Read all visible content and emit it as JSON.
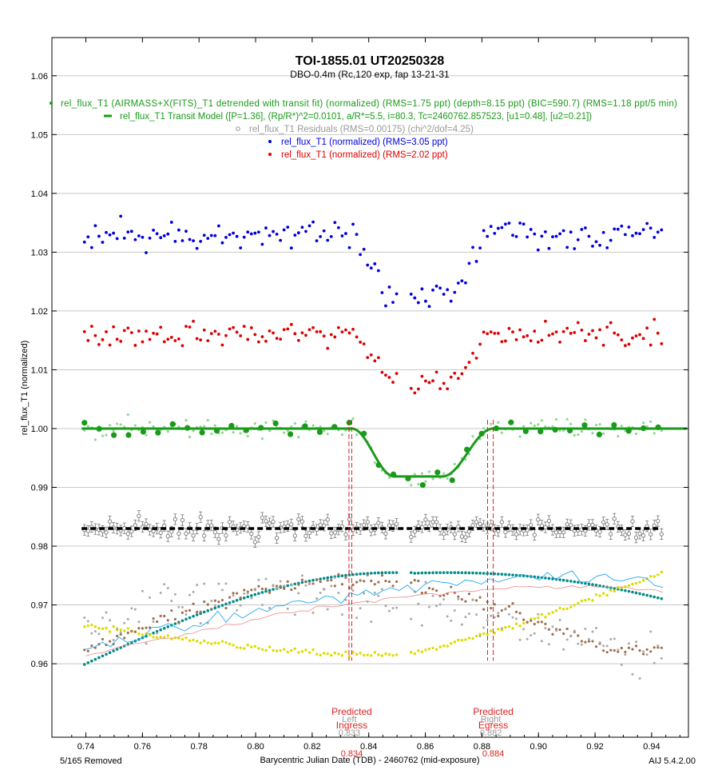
{
  "chart_data": {
    "type": "scatter",
    "title": "TOI-1855.01  UT20250328",
    "subtitle": "DBO-0.4m (Rc,120 exp, fap 13-21-31",
    "xlabel": "Barycentric Julian Date (TDB) - 2460762 (mid-exposure)",
    "ylabel": "rel_flux_T1 (normalized)",
    "xlim": [
      0.728,
      0.953
    ],
    "ylim": [
      0.9475,
      1.0665
    ],
    "x_ticks": [
      "0.74",
      "0.76",
      "0.78",
      "0.80",
      "0.82",
      "0.84",
      "0.86",
      "0.88",
      "0.90",
      "0.92",
      "0.94"
    ],
    "y_ticks": [
      "0.96",
      "0.97",
      "0.98",
      "0.99",
      "1.00",
      "1.01",
      "1.02",
      "1.03",
      "1.04",
      "1.05",
      "1.06"
    ],
    "grid": "horizontal",
    "legend": [
      {
        "label": "rel_flux_T1 (AIRMASS+X(FITS)_T1 detrended with transit fit) (normalized) (RMS=1.75 ppt) (depth=8.15 ppt) (BIC=590.7) (RMS=1.18 ppt/5 min)",
        "color": "#1a9a1a",
        "marker": "dot"
      },
      {
        "label": "rel_flux_T1 Transit Model ([P=1.36], (Rp/R*)^2=0.0101, a/R*=5.5, i=80.3, Tc=2460762.857523, [u1=0.48], [u2=0.21])",
        "color": "#1a9a1a",
        "marker": "dash"
      },
      {
        "label": "rel_flux_T1 Residuals (RMS=0.00175) (chi^2/dof=4.25)",
        "color": "#999999",
        "marker": "circle"
      },
      {
        "label": "rel_flux_T1 (normalized) (RMS=3.05 ppt)",
        "color": "#0000dd",
        "marker": "dot"
      },
      {
        "label": "rel_flux_T1 (normalized) (RMS=2.02 ppt)",
        "color": "#dd0000",
        "marker": "dot"
      }
    ],
    "series": [
      {
        "role": "blue",
        "offset": 1.033,
        "amp": 0.0027,
        "color": "#0000dd"
      },
      {
        "role": "red",
        "offset": 1.016,
        "amp": 0.002,
        "color": "#dd0000"
      },
      {
        "role": "detrended",
        "offset": 1.0,
        "amp": 0.0017,
        "color": "#1a9a1a"
      },
      {
        "role": "residuals",
        "offset": 0.983,
        "amp": 0.0017,
        "color": "#888888"
      }
    ],
    "transit": {
      "tc": 0.8575,
      "t_ingress": 0.834,
      "t_egress": 0.884,
      "depth": 0.00815,
      "t_full_in": 0.849,
      "t_full_out": 0.866,
      "x_start": 0.7395,
      "x_end": 0.9525
    },
    "aux_series": [
      {
        "name": "airmass",
        "color": "#008b8b",
        "start": 0.96,
        "peak": 0.9755,
        "end": 0.971
      },
      {
        "name": "yellow",
        "color": "#dddd00",
        "start": 0.9665,
        "end": 0.9755
      },
      {
        "name": "brown",
        "color": "#a07050"
      },
      {
        "name": "gray",
        "color": "#aaaaaa"
      },
      {
        "name": "cyan",
        "color": "#22aaee"
      },
      {
        "name": "pink",
        "color": "#ee8888"
      }
    ],
    "markers": [
      {
        "label1": "Predicted",
        "label2": "Ingress",
        "x": 0.834,
        "left_label": "Left",
        "left_x": 0.833,
        "left_value": "0.833",
        "value": "0.834"
      },
      {
        "label1": "Predicted",
        "label2": "Egress",
        "x": 0.884,
        "left_label": "Right",
        "left_x": 0.882,
        "left_value": "0.882",
        "value": "0.884"
      }
    ]
  },
  "footer": {
    "left": "5/165 Removed",
    "right": "AIJ 5.4.2.00"
  }
}
